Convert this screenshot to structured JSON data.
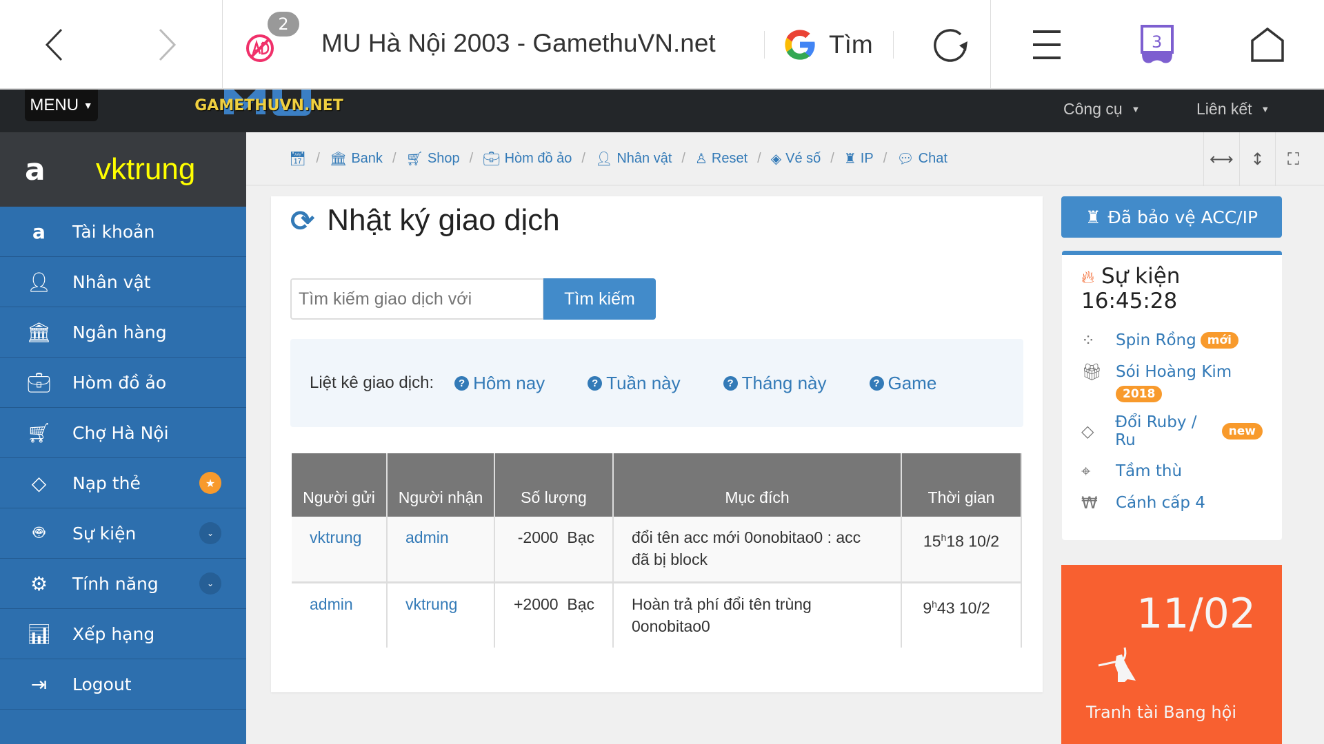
{
  "browser": {
    "title": "MU Hà Nội 2003 - GamethuVN.net",
    "ad_badge": "2",
    "search_label": "Tìm",
    "tabs_count": "3"
  },
  "nav": {
    "menu": "MENU",
    "logo": "GAMETHUVN.NET",
    "links": [
      "Công cụ",
      "Liên kết"
    ]
  },
  "sidebar": {
    "username": "vktrung",
    "items": [
      {
        "label": "Tài khoản",
        "icon": "amazon-icon"
      },
      {
        "label": "Nhân vật",
        "icon": "user-icon"
      },
      {
        "label": "Ngân hàng",
        "icon": "bank-icon"
      },
      {
        "label": "Hòm đồ ảo",
        "icon": "suitcase-icon"
      },
      {
        "label": "Chợ Hà Nội",
        "icon": "cart-icon"
      },
      {
        "label": "Nạp thẻ",
        "icon": "diamond-icon"
      },
      {
        "label": "Sự kiện",
        "icon": "android-icon"
      },
      {
        "label": "Tính năng",
        "icon": "gears-icon"
      },
      {
        "label": "Xếp hạng",
        "icon": "bar-chart-icon"
      },
      {
        "label": "Logout",
        "icon": "sign-out-icon"
      }
    ]
  },
  "breadcrumb": [
    "Bank",
    "Shop",
    "Hòm đồ ảo",
    "Nhân vật",
    "Reset",
    "Vé số",
    "IP",
    "Chat"
  ],
  "main": {
    "title": "Nhật ký giao dịch",
    "search_placeholder": "Tìm kiếm giao dịch với",
    "search_button": "Tìm kiếm",
    "filter_label": "Liệt kê giao dịch:",
    "filters": [
      "Hôm nay",
      "Tuần này",
      "Tháng này",
      "Game"
    ],
    "table": {
      "headers": [
        "Người gửi",
        "Người nhận",
        "Số lượng",
        "Mục đích",
        "Thời gian"
      ],
      "rows": [
        {
          "sender": "vktrung",
          "receiver": "admin",
          "amount": "-2000  Bạc",
          "purpose": "đổi tên acc mới 0onobitao0 : acc đã bị block",
          "hour": "15",
          "h": "h",
          "rest": "18 10/2"
        },
        {
          "sender": "admin",
          "receiver": "vktrung",
          "amount": "+2000  Bạc",
          "purpose": "Hoàn trả phí đổi tên trùng 0onobitao0",
          "hour": "9",
          "h": "h",
          "rest": "43 10/2"
        }
      ]
    }
  },
  "right": {
    "protect": "Đã bảo vệ ACC/IP",
    "events_title": "Sự kiện",
    "events_time": "16:45:28",
    "events": [
      {
        "label": "Spin Rồng",
        "badge": "mới"
      },
      {
        "label": "Sói Hoàng Kim",
        "badge": "2018"
      },
      {
        "label": "Đổi Ruby / Ru",
        "badge": "new"
      },
      {
        "label": "Tầm thù"
      },
      {
        "label": "Cánh cấp 4"
      }
    ],
    "promo_date": "11/02",
    "promo_label": "Tranh tài Bang hội"
  },
  "colors": {
    "sidebar": "#2d6fae",
    "accent": "#428bca",
    "promo": "#f86030",
    "badge": "#f89a2c",
    "username": "#ffff00"
  }
}
